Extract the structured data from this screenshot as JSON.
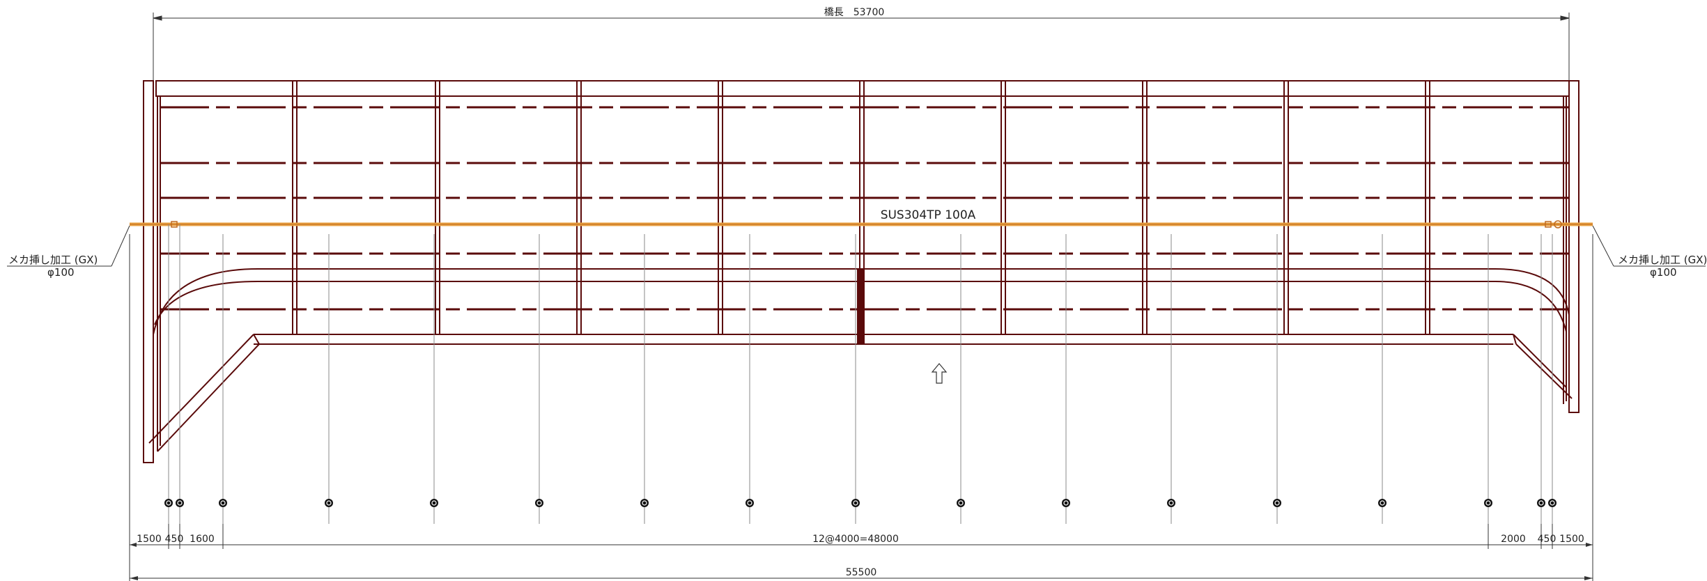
{
  "bridge_length_label": "橋長　53700",
  "pipe_label": "SUS304TP 100A",
  "left_note": {
    "line1": "メカ挿し加工 (GX)",
    "line2": "φ100"
  },
  "right_note": {
    "line1": "メカ挿し加工 (GX)",
    "line2": "φ100"
  },
  "bottom_dims": {
    "left_1500": "1500",
    "left_450": "450",
    "left_1600": "1600",
    "middle": "12@4000=48000",
    "right_2000": "2000",
    "right_450": "450",
    "right_1500": "1500"
  },
  "overall_length_label": "55500",
  "colors": {
    "truss": "#5a0a0a",
    "pipe": "#e8a040",
    "support_line": "#888888",
    "dimension": "#333333",
    "support_dot": "#111111"
  },
  "icons": {
    "flow_arrow": "up-arrow-icon"
  }
}
